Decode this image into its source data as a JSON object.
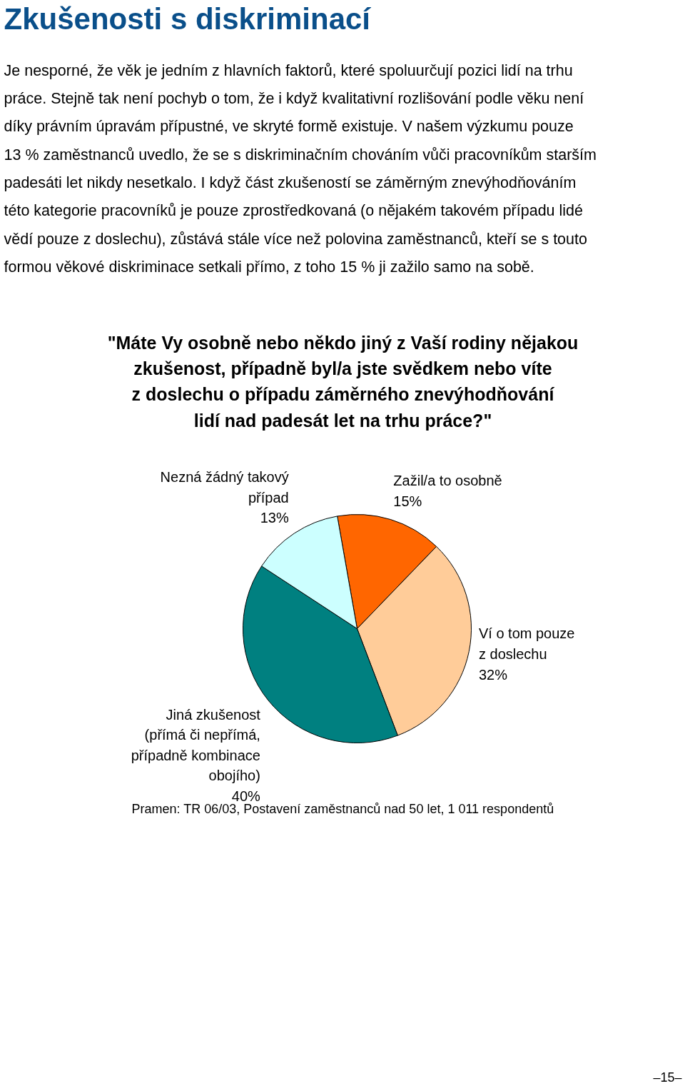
{
  "chart_data": {
    "type": "pie",
    "title": "Zkušenosti s diskriminací",
    "subtitle": "\"Máte Vy osobně nebo někdo jiný z Vaší rodiny nějakou\nzkušenost, případně byl/a jste svědkem nebo víte\nz doslechu o případu záměrného znevýhodňování\nlidí nad padesát let na trhu práce?\"",
    "categories": [
      "Zažil/a to osobně",
      "Ví o tom  pouze\nz doslechu",
      "Jiná zkušenost\n(přímá či nepřímá,\npřípadně kombinace\nobojího)",
      "Nezná žádný takový\npřípad"
    ],
    "values": [
      15,
      32,
      40,
      13
    ],
    "colors": [
      "#ff6600",
      "#ffcc99",
      "#008080",
      "#ccffff"
    ],
    "value_labels": [
      "15%",
      "32%",
      "40%",
      "13%"
    ],
    "annotations": [
      "Je nesporné, že věk je jedním z hlavních faktorů, které spoluurčují pozici lidí na trhu\npráce. Stejně tak není pochyb o tom, že i když kvalitativní rozlišování podle věku není\ndíky právním úpravám přípustné, ve skryté formě existuje. V našem výzkumu pouze\n13 % zaměstnanců uvedlo, že se s diskriminačním chováním vůči pracovníkům starším\npadesáti let nikdy nesetkalo. I když část zkušeností se záměrným znevýhodňováním\ntéto kategorie pracovníků je pouze zprostředkovaná (o nějakém takovém případu lidé\nvědí pouze z doslechu), zůstává stále více než polovina zaměstnanců, kteří se s touto\nformou věkové diskriminace setkali přímo, z toho 15 % ji zažilo samo na sobě.",
      "Pramen: TR 06/03, Postavení zaměstnanců nad 50 let, 1 011 respondentů",
      "–15–"
    ]
  }
}
